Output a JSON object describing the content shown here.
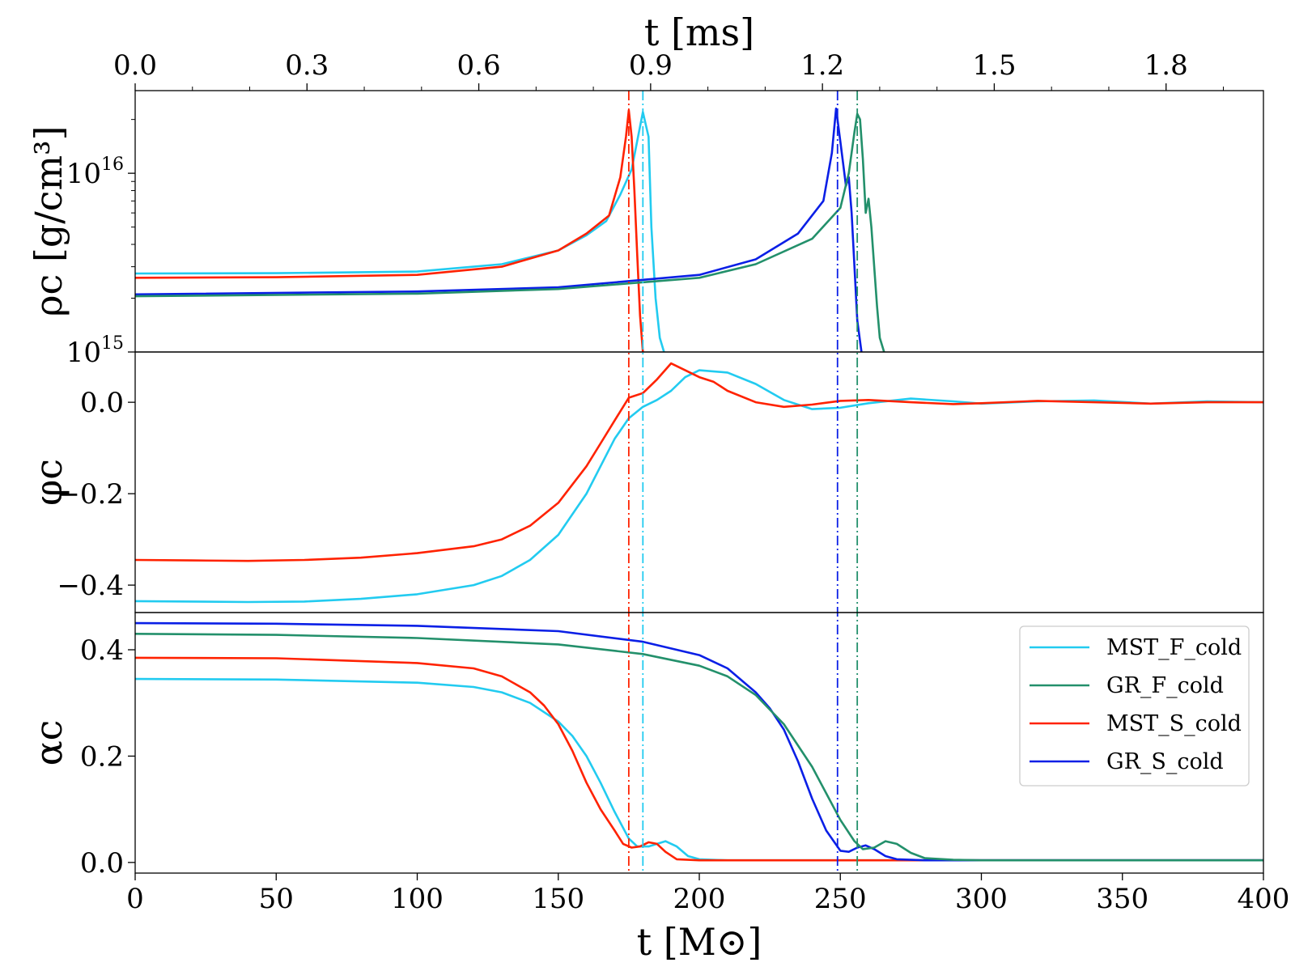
{
  "chart_data": {
    "type": "line",
    "shared_x": {
      "label": "t [M⊙]",
      "range": [
        0,
        400
      ],
      "ticks": [
        0,
        50,
        100,
        150,
        200,
        250,
        300,
        350,
        400
      ],
      "tick_labels": [
        "0",
        "50",
        "100",
        "150",
        "200",
        "250",
        "300",
        "350",
        "400"
      ]
    },
    "top_x": {
      "label": "t [ms]",
      "range": [
        0,
        1.97
      ],
      "ticks": [
        0.0,
        0.3,
        0.6,
        0.9,
        1.2,
        1.5,
        1.8
      ],
      "tick_labels": [
        "0.0",
        "0.3",
        "0.6",
        "0.9",
        "1.2",
        "1.5",
        "1.8"
      ]
    },
    "colors": {
      "MST_F_cold": "#22cbf0",
      "GR_F_cold": "#23906b",
      "MST_S_cold": "#ff2200",
      "GR_S_cold": "#0a1fe6"
    },
    "vlines": [
      {
        "series": "MST_S_cold",
        "x": 175
      },
      {
        "series": "MST_F_cold",
        "x": 180
      },
      {
        "series": "GR_S_cold",
        "x": 249
      },
      {
        "series": "GR_F_cold",
        "x": 256
      }
    ],
    "legend": {
      "panel": "alpha",
      "placement": "right",
      "entries": [
        "MST_F_cold",
        "GR_F_cold",
        "MST_S_cold",
        "GR_S_cold"
      ]
    },
    "panels": [
      {
        "id": "rho",
        "ylabel": "ρc [g/cm³]",
        "yscale": "log",
        "ylim": [
          1000000000000000.0,
          2.9e+16
        ],
        "ticks": [
          1000000000000000.0,
          1e+16
        ],
        "tick_labels": [
          "10^15",
          "10^16"
        ],
        "series": [
          {
            "name": "MST_F_cold",
            "x": [
              0,
              50,
              100,
              130,
              150,
              160,
              167,
              172,
              176,
              180,
              182,
              183,
              184.5,
              186,
              187.5
            ],
            "y": [
              2750000000000000.0,
              2760000000000000.0,
              2820000000000000.0,
              3100000000000000.0,
              3700000000000000.0,
              4500000000000000.0,
              5400000000000000.0,
              7600000000000000.0,
              1.05e+16,
              2.2e+16,
              1.6e+16,
              5000000000000000.0,
              2000000000000000.0,
              1200000000000000.0,
              1000000000000000.0
            ]
          },
          {
            "name": "MST_S_cold",
            "x": [
              0,
              50,
              100,
              130,
              150,
              160,
              168,
              172,
              174,
              175,
              176,
              177,
              178,
              179,
              180
            ],
            "y": [
              2600000000000000.0,
              2620000000000000.0,
              2700000000000000.0,
              3000000000000000.0,
              3700000000000000.0,
              4600000000000000.0,
              5800000000000000.0,
              9500000000000000.0,
              1.6e+16,
              2.25e+16,
              1.6e+16,
              8000000000000000.0,
              3500000000000000.0,
              1600000000000000.0,
              1000000000000000.0
            ]
          },
          {
            "name": "GR_S_cold",
            "x": [
              0,
              100,
              150,
              200,
              220,
              235,
              244,
              247,
              248.5,
              250,
              252,
              253,
              254,
              255,
              256,
              257.5
            ],
            "y": [
              2100000000000000.0,
              2180000000000000.0,
              2300000000000000.0,
              2700000000000000.0,
              3300000000000000.0,
              4600000000000000.0,
              7000000000000000.0,
              1.3e+16,
              2.3e+16,
              1.5e+16,
              8500000000000000.0,
              9500000000000000.0,
              6000000000000000.0,
              3000000000000000.0,
              1500000000000000.0,
              1000000000000000.0
            ]
          },
          {
            "name": "GR_F_cold",
            "x": [
              0,
              100,
              150,
              200,
              220,
              240,
              250,
              253,
              255,
              256,
              257,
              258,
              259,
              260,
              261,
              262,
              263,
              264,
              265.5
            ],
            "y": [
              2050000000000000.0,
              2120000000000000.0,
              2250000000000000.0,
              2600000000000000.0,
              3100000000000000.0,
              4300000000000000.0,
              6400000000000000.0,
              1e+16,
              1.7e+16,
              2.15e+16,
              2e+16,
              1.2e+16,
              6000000000000000.0,
              7200000000000000.0,
              5000000000000000.0,
              3000000000000000.0,
              1800000000000000.0,
              1200000000000000.0,
              1000000000000000.0
            ]
          }
        ]
      },
      {
        "id": "phi",
        "ylabel": "φc",
        "yscale": "linear",
        "ylim": [
          -0.46,
          0.11
        ],
        "ticks": [
          0.0,
          -0.2,
          -0.4
        ],
        "tick_labels": [
          "0.0",
          "−0.2",
          "−0.4"
        ],
        "series": [
          {
            "name": "MST_F_cold",
            "x": [
              0,
              20,
              40,
              60,
              80,
              100,
              120,
              130,
              140,
              150,
              160,
              165,
              170,
              175,
              180,
              185,
              190,
              195,
              200,
              210,
              220,
              230,
              240,
              250,
              260,
              275,
              290,
              300,
              320,
              340,
              360,
              380,
              400
            ],
            "y": [
              -0.435,
              -0.436,
              -0.437,
              -0.436,
              -0.43,
              -0.42,
              -0.4,
              -0.38,
              -0.345,
              -0.29,
              -0.2,
              -0.14,
              -0.08,
              -0.035,
              -0.01,
              0.005,
              0.025,
              0.055,
              0.07,
              0.065,
              0.04,
              0.005,
              -0.015,
              -0.012,
              -0.002,
              0.008,
              0.002,
              -0.003,
              0.002,
              0.004,
              -0.003,
              0.002,
              0.0
            ]
          },
          {
            "name": "MST_S_cold",
            "x": [
              0,
              20,
              40,
              60,
              80,
              100,
              120,
              130,
              140,
              150,
              160,
              165,
              170,
              175,
              180,
              185,
              190,
              195,
              200,
              205,
              210,
              220,
              230,
              240,
              250,
              260,
              275,
              290,
              300,
              320,
              340,
              360,
              380,
              400
            ],
            "y": [
              -0.345,
              -0.346,
              -0.347,
              -0.345,
              -0.34,
              -0.33,
              -0.315,
              -0.3,
              -0.27,
              -0.22,
              -0.14,
              -0.09,
              -0.04,
              0.01,
              0.02,
              0.05,
              0.085,
              0.07,
              0.055,
              0.045,
              0.025,
              0.0,
              -0.01,
              -0.005,
              0.003,
              0.005,
              0.0,
              -0.004,
              -0.002,
              0.003,
              0.0,
              -0.003,
              0.0,
              0.0
            ]
          }
        ]
      },
      {
        "id": "alpha",
        "ylabel": "αc",
        "yscale": "linear",
        "ylim": [
          -0.02,
          0.47
        ],
        "ticks": [
          0.0,
          0.2,
          0.4
        ],
        "tick_labels": [
          "0.0",
          "0.2",
          "0.4"
        ],
        "series": [
          {
            "name": "MST_F_cold",
            "x": [
              0,
              50,
              100,
              120,
              130,
              140,
              150,
              155,
              160,
              165,
              170,
              175,
              178,
              182,
              185,
              188,
              192,
              196,
              200,
              210,
              250,
              300,
              400
            ],
            "y": [
              0.345,
              0.344,
              0.338,
              0.33,
              0.32,
              0.3,
              0.265,
              0.238,
              0.2,
              0.15,
              0.095,
              0.045,
              0.03,
              0.03,
              0.035,
              0.04,
              0.03,
              0.012,
              0.006,
              0.004,
              0.004,
              0.004,
              0.004
            ]
          },
          {
            "name": "MST_S_cold",
            "x": [
              0,
              50,
              100,
              120,
              130,
              140,
              145,
              150,
              155,
              160,
              165,
              170,
              173,
              176,
              179,
              182,
              185,
              188,
              192,
              200,
              250,
              300,
              400
            ],
            "y": [
              0.385,
              0.384,
              0.375,
              0.365,
              0.35,
              0.32,
              0.295,
              0.26,
              0.21,
              0.15,
              0.1,
              0.06,
              0.035,
              0.028,
              0.03,
              0.038,
              0.035,
              0.02,
              0.006,
              0.004,
              0.004,
              0.004,
              0.004
            ]
          },
          {
            "name": "GR_S_cold",
            "x": [
              0,
              50,
              100,
              150,
              180,
              200,
              210,
              220,
              225,
              230,
              235,
              240,
              245,
              250,
              253,
              256,
              259,
              262,
              266,
              270,
              280,
              300,
              400
            ],
            "y": [
              0.45,
              0.449,
              0.445,
              0.435,
              0.415,
              0.39,
              0.365,
              0.32,
              0.29,
              0.25,
              0.19,
              0.12,
              0.06,
              0.022,
              0.02,
              0.028,
              0.032,
              0.025,
              0.012,
              0.006,
              0.004,
              0.004,
              0.004
            ]
          },
          {
            "name": "GR_F_cold",
            "x": [
              0,
              50,
              100,
              150,
              180,
              200,
              210,
              220,
              230,
              240,
              245,
              250,
              255,
              258,
              262,
              266,
              270,
              275,
              280,
              290,
              300,
              400
            ],
            "y": [
              0.43,
              0.428,
              0.422,
              0.41,
              0.392,
              0.37,
              0.35,
              0.315,
              0.26,
              0.18,
              0.13,
              0.08,
              0.04,
              0.025,
              0.028,
              0.04,
              0.035,
              0.018,
              0.008,
              0.005,
              0.004,
              0.004
            ]
          }
        ]
      }
    ]
  }
}
